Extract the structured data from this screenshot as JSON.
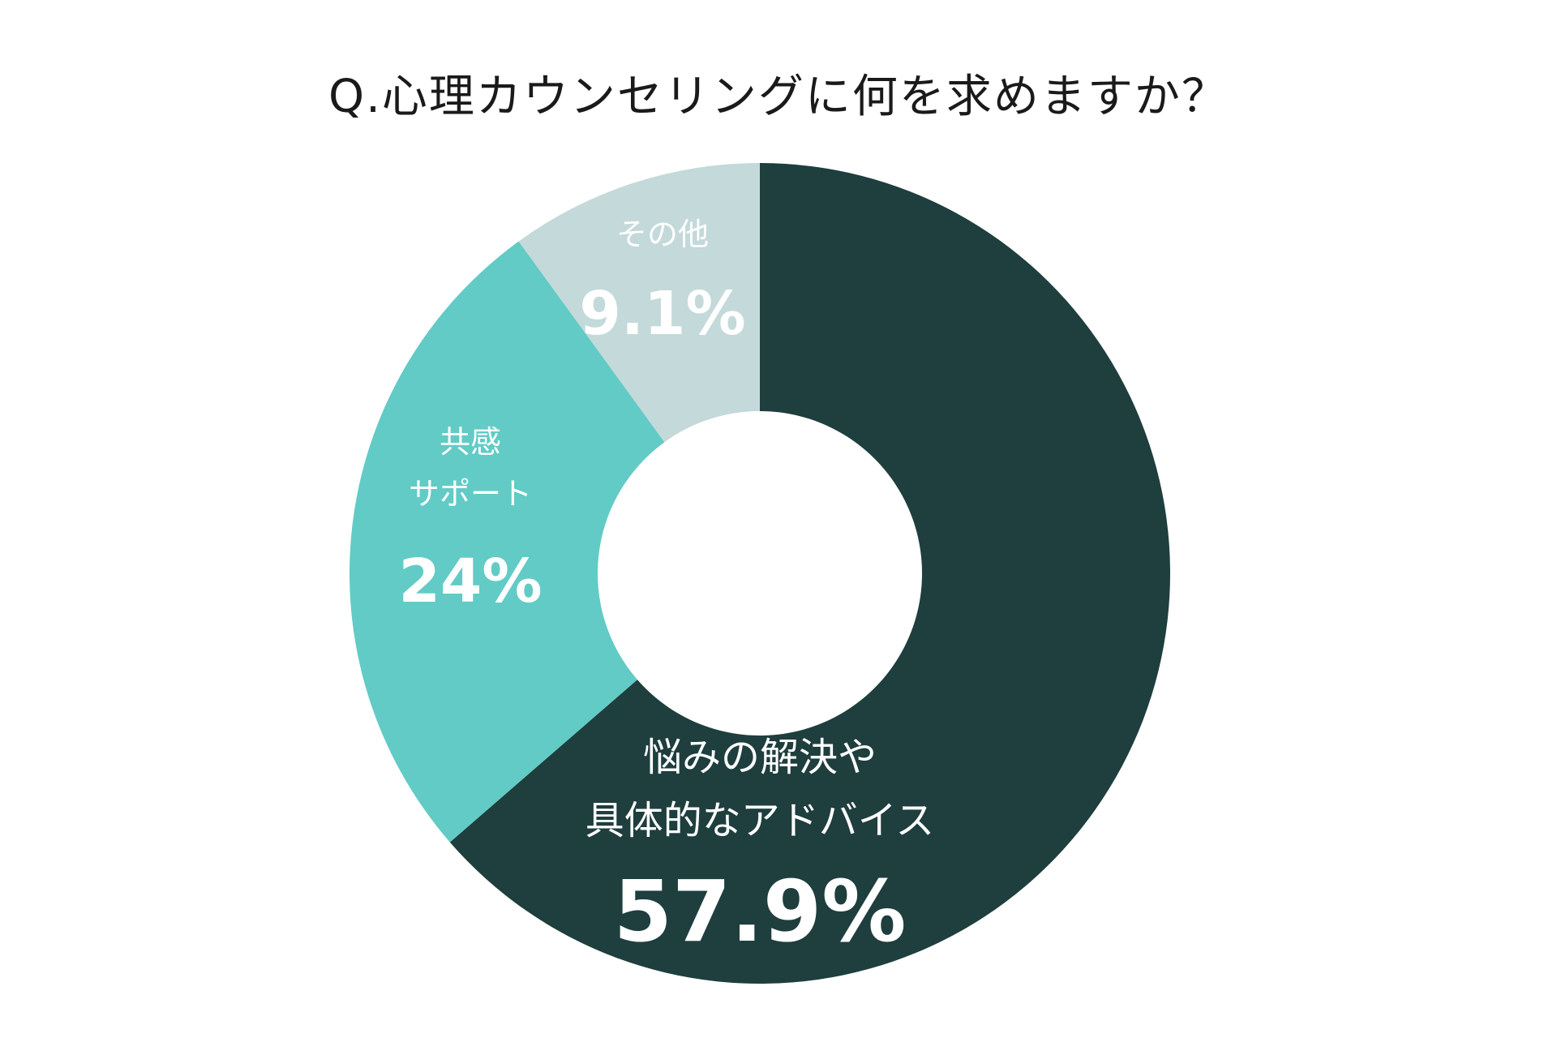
{
  "chart_data": {
    "type": "pie",
    "title": "Q.心理カウンセリングに何を求めますか？",
    "slices": [
      {
        "label_lines": [
          "悩みの解決や",
          "具体的なアドバイス"
        ],
        "value_text": "57.9%",
        "value": 57.9,
        "color": "#1f3e3e"
      },
      {
        "label_lines": [
          "共感",
          "サポート"
        ],
        "value_text": "24%",
        "value": 24,
        "color": "#62cbc6"
      },
      {
        "label_lines": [
          "その他"
        ],
        "value_text": "9.1%",
        "value": 9.1,
        "color": "#c4d9d9"
      }
    ],
    "grid": false,
    "legend": "none"
  }
}
